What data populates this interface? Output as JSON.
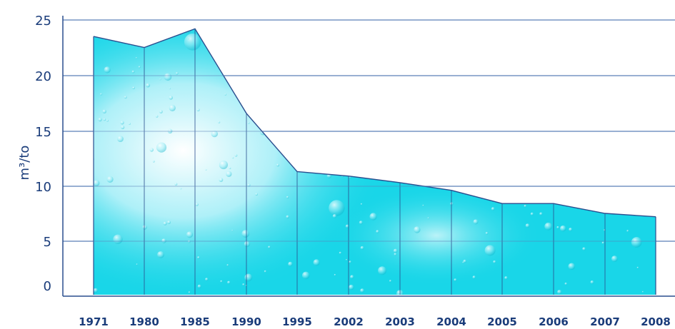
{
  "chart_data": {
    "type": "area",
    "ylabel": "m³/to",
    "categories": [
      "1971",
      "1980",
      "1985",
      "1990",
      "1995",
      "2002",
      "2003",
      "2004",
      "2005",
      "2006",
      "2007",
      "2008"
    ],
    "values": [
      23.5,
      22.5,
      24.2,
      16.5,
      11.2,
      10.8,
      10.2,
      9.5,
      8.3,
      8.3,
      7.4,
      7.1
    ],
    "yticks": [
      "0",
      "5",
      "10",
      "15",
      "20",
      "25"
    ],
    "ylim": [
      0,
      25
    ],
    "grid": true,
    "colors": {
      "fill": "#19d6e8",
      "highlight": "#eafcff",
      "line": "#2a4e8e",
      "grid": "#5a7fb8",
      "text": "#1a3c7a"
    }
  }
}
